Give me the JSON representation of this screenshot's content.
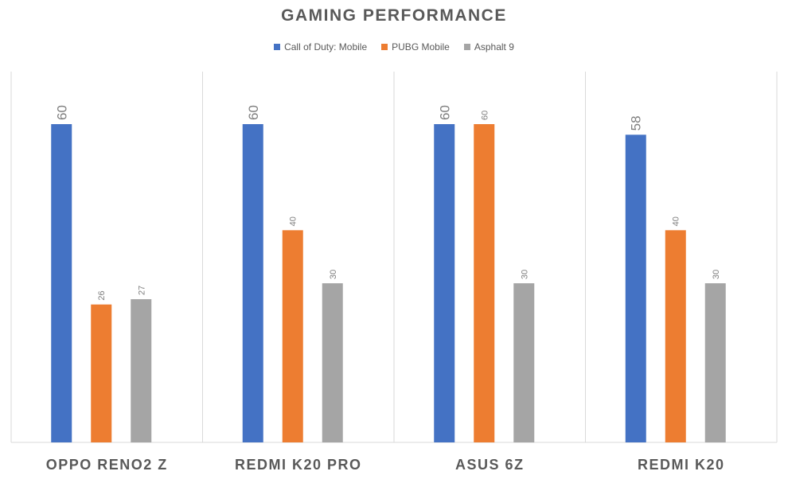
{
  "chart_data": {
    "type": "bar",
    "title": "GAMING PERFORMANCE",
    "xlabel": "",
    "ylabel": "",
    "ylim": [
      0,
      70
    ],
    "grid": false,
    "legend_position": "top",
    "categories": [
      "OPPO RENO2 Z",
      "REDMI K20 PRO",
      "ASUS 6Z",
      "REDMI K20"
    ],
    "series": [
      {
        "name": "Call of Duty: Mobile",
        "color": "#4472C4",
        "values": [
          60,
          60,
          60,
          58
        ]
      },
      {
        "name": "PUBG Mobile",
        "color": "#ED7D31",
        "values": [
          26,
          40,
          60,
          40
        ]
      },
      {
        "name": "Asphalt 9",
        "color": "#A5A5A5",
        "values": [
          27,
          30,
          30,
          30
        ]
      }
    ]
  }
}
